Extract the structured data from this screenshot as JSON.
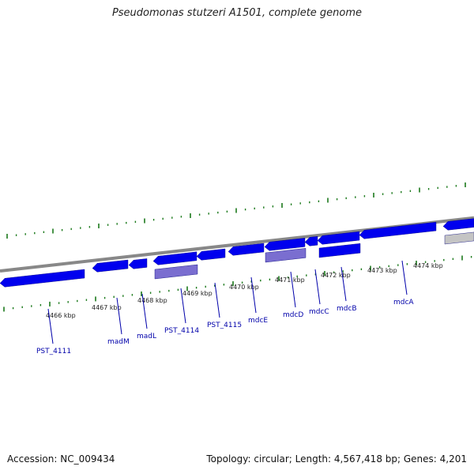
{
  "title": "Pseudomonas stutzeri A1501, complete genome",
  "footer": {
    "accession": "Accession: NC_009434",
    "summary": "Topology: circular; Length: 4,567,418 bp; Genes: 4,201"
  },
  "colors": {
    "gene_forward": "#0000ee",
    "gene_pseudo": "#7a6ed0",
    "gene_other": "#c4c4c4",
    "backbone": "#888888",
    "ticks": "#1c7a1c",
    "label": "#0000aa"
  },
  "kbp_labels": [
    "4466 kbp",
    "4467 kbp",
    "4468 kbp",
    "4469 kbp",
    "4470 kbp",
    "4471 kbp",
    "4472 kbp",
    "4473 kbp",
    "4474 kbp"
  ],
  "gene_labels": [
    "PST_4111",
    "madM",
    "madL",
    "PST_4114",
    "PST_4115",
    "mdcE",
    "mdcD",
    "mdcC",
    "mdcB",
    "mdcA"
  ]
}
